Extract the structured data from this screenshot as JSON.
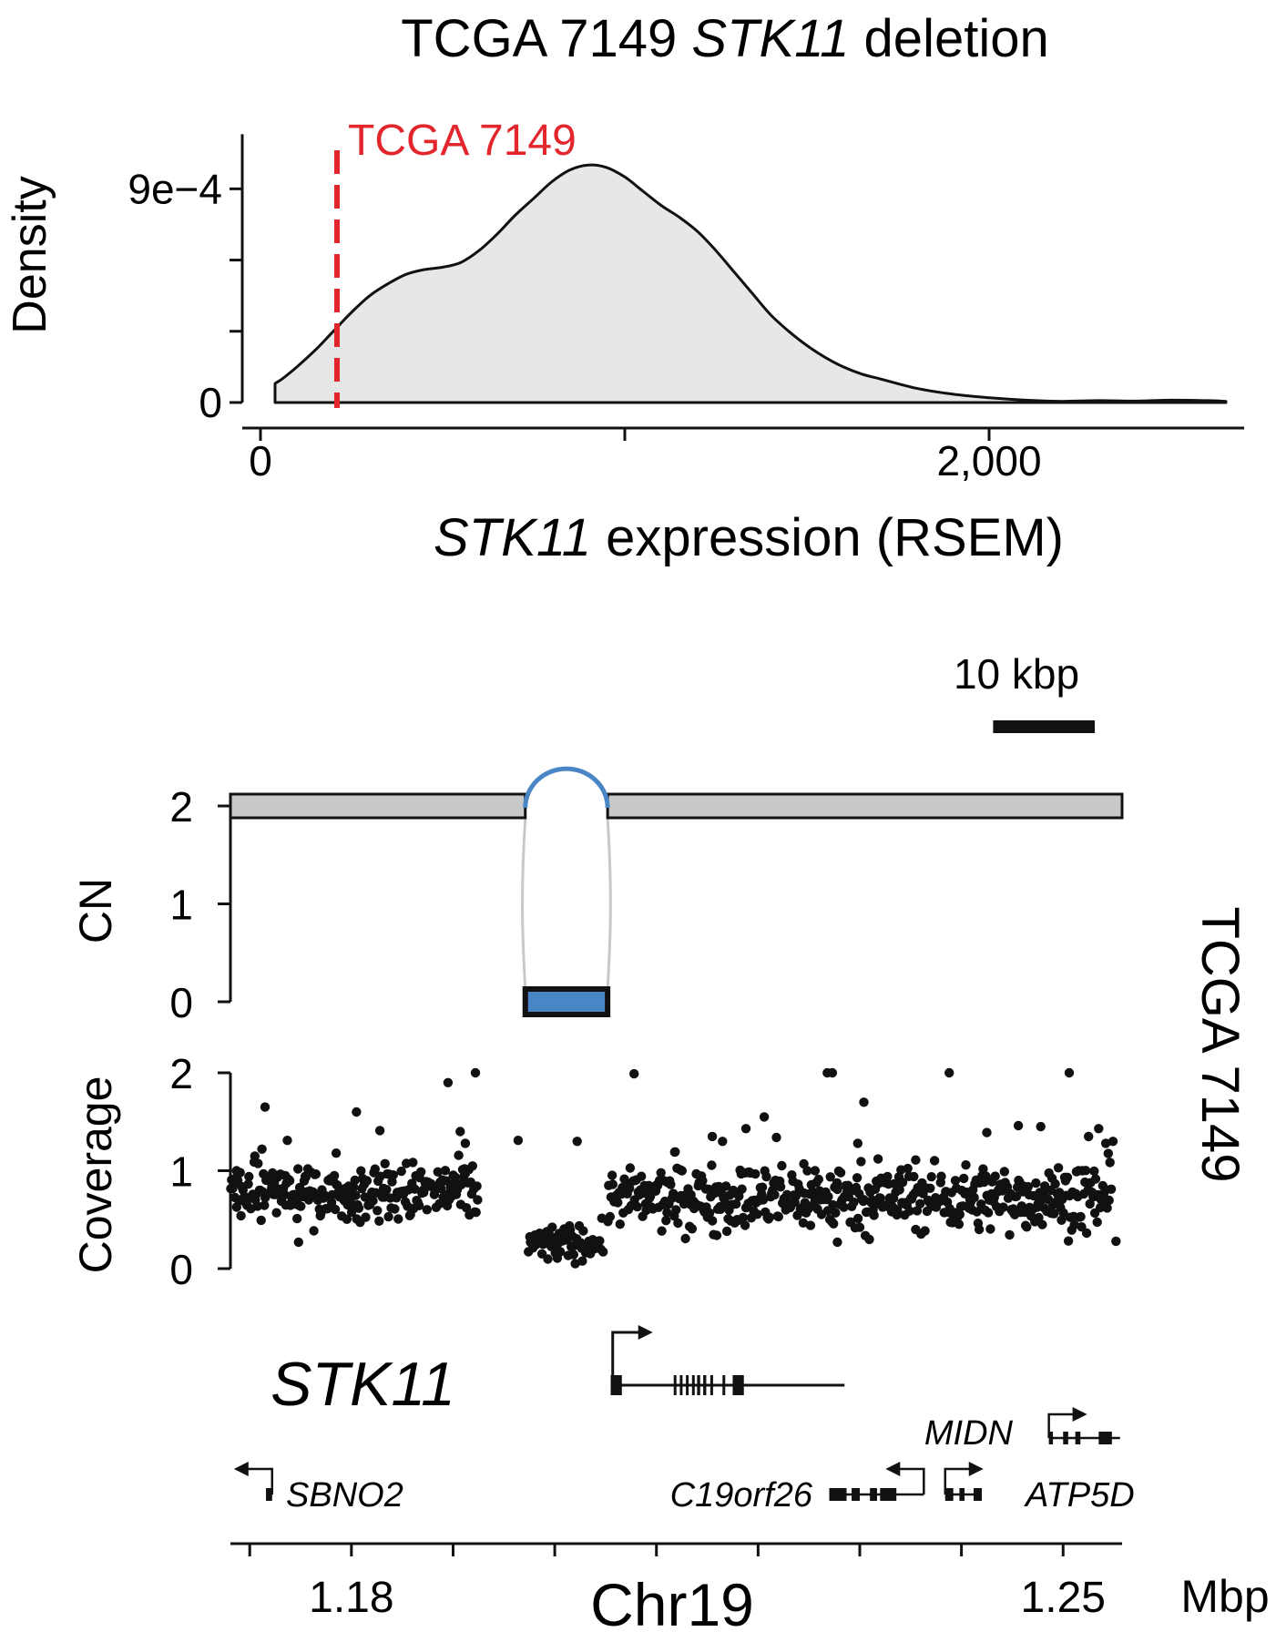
{
  "title": {
    "prefix": "TCGA 7149 ",
    "gene": "STK11",
    "suffix": " deletion"
  },
  "chart_data": [
    {
      "type": "area",
      "description": "Density of STK11 expression across samples",
      "xlabel_gene": "STK11",
      "xlabel_rest": " expression (RSEM)",
      "ylabel": "Density",
      "xlim": [
        -50,
        2700
      ],
      "ylim": [
        -5e-05,
        0.00112
      ],
      "x_ticks": [
        0,
        2000
      ],
      "x_tick_labels": [
        "0",
        "2,000"
      ],
      "x_minor_ticks": [
        0,
        1000,
        2000
      ],
      "y_ticks": [
        0,
        0.0009
      ],
      "y_tick_labels": [
        "0",
        "9e−4"
      ],
      "y_minor_ticks": [
        0,
        0.0003,
        0.0006,
        0.0009
      ],
      "fill_color": "#e6e8e7",
      "marker": {
        "x": 210,
        "label": "TCGA 7149",
        "color": "#e2262c"
      },
      "x": [
        40,
        60,
        100,
        150,
        200,
        250,
        300,
        350,
        400,
        450,
        500,
        550,
        600,
        650,
        700,
        750,
        800,
        850,
        900,
        950,
        1000,
        1050,
        1100,
        1150,
        1200,
        1250,
        1300,
        1350,
        1400,
        1450,
        1500,
        1550,
        1600,
        1650,
        1700,
        1800,
        1900,
        2000,
        2100,
        2200,
        2300,
        2400,
        2500,
        2600,
        2650
      ],
      "density": [
        8e-05,
        0.0001,
        0.00015,
        0.00022,
        0.0003,
        0.00038,
        0.00045,
        0.0005,
        0.00054,
        0.00056,
        0.00057,
        0.00059,
        0.00064,
        0.00071,
        0.00079,
        0.00086,
        0.00093,
        0.00098,
        0.001,
        0.00099,
        0.00095,
        0.00089,
        0.00083,
        0.00078,
        0.00072,
        0.00064,
        0.00055,
        0.00046,
        0.00037,
        0.0003,
        0.00024,
        0.00019,
        0.00015,
        0.00012,
        0.0001,
        6e-05,
        3.5e-05,
        2e-05,
        1e-05,
        5e-06,
        8e-06,
        6e-06,
        1e-05,
        8e-06,
        5e-06
      ]
    },
    {
      "type": "genome_track",
      "side_label": "TCGA 7149",
      "xlabel": "Chr19",
      "x_unit": "Mbp",
      "xlim": [
        1.1681,
        1.2558
      ],
      "x_ticks": [
        1.18,
        1.25
      ],
      "x_tick_labels": [
        "1.18",
        "1.25"
      ],
      "x_minor_ticks": [
        1.17,
        1.18,
        1.19,
        1.2,
        1.21,
        1.22,
        1.23,
        1.24,
        1.25
      ],
      "scale_bar_label": "10 kbp",
      "scale_bar_kbp": 10,
      "cn": {
        "ylabel": "CN",
        "ylim": [
          0,
          2
        ],
        "y_ticks": [
          0,
          1,
          2
        ],
        "y_tick_labels": [
          "0",
          "1",
          "2"
        ],
        "segments": [
          {
            "start": 1.1681,
            "end": 1.1971,
            "cn": 2,
            "color": "#c8c8c8"
          },
          {
            "start": 1.1971,
            "end": 1.2052,
            "cn": 0,
            "color": "#4a85c6"
          },
          {
            "start": 1.2052,
            "end": 1.2558,
            "cn": 2,
            "color": "#c8c8c8"
          }
        ],
        "deletion_arc_color": "#4a85c6",
        "link_color": "#c8c8c8"
      },
      "coverage": {
        "ylabel": "Coverage",
        "ylim": [
          0,
          2
        ],
        "y_ticks": [
          0,
          1,
          2
        ],
        "y_tick_labels": [
          "0",
          "1",
          "2"
        ],
        "regions": [
          {
            "start": 1.1681,
            "end": 1.1925,
            "mean": 0.78,
            "sd": 0.22
          },
          {
            "start": 1.1974,
            "end": 1.2048,
            "mean": 0.26,
            "sd": 0.13
          },
          {
            "start": 1.2052,
            "end": 1.2102,
            "mean": 0.72,
            "sd": 0.2
          },
          {
            "start": 1.2102,
            "end": 1.2548,
            "mean": 0.72,
            "sd": 0.24
          }
        ],
        "outliers": [
          [
            1.1687,
            1.0
          ],
          [
            1.1705,
            1.15
          ],
          [
            1.1712,
            1.22
          ],
          [
            1.1715,
            1.65
          ],
          [
            1.1735,
            0.95
          ],
          [
            1.1737,
            1.31
          ],
          [
            1.1748,
            0.27
          ],
          [
            1.1785,
            1.18
          ],
          [
            1.1805,
            1.6
          ],
          [
            1.1828,
            1.41
          ],
          [
            1.1895,
            1.9
          ],
          [
            1.1907,
            1.4
          ],
          [
            1.1912,
            1.28
          ],
          [
            1.1922,
            2.0
          ],
          [
            1.1964,
            1.31
          ],
          [
            1.2022,
            1.3
          ],
          [
            1.2078,
            1.99
          ],
          [
            1.2118,
            1.19
          ],
          [
            1.2155,
            1.35
          ],
          [
            1.2165,
            1.3
          ],
          [
            1.2188,
            1.43
          ],
          [
            1.2206,
            1.55
          ],
          [
            1.2218,
            1.34
          ],
          [
            1.2245,
            1.07
          ],
          [
            1.2256,
            1.0
          ],
          [
            1.2268,
            2.0
          ],
          [
            1.2273,
            2.0
          ],
          [
            1.2278,
            0.27
          ],
          [
            1.2298,
            1.28
          ],
          [
            1.2304,
            1.7
          ],
          [
            1.2318,
            1.12
          ],
          [
            1.2355,
            1.11
          ],
          [
            1.2388,
            2.0
          ],
          [
            1.2425,
            1.39
          ],
          [
            1.2456,
            1.46
          ],
          [
            1.2478,
            1.45
          ],
          [
            1.2488,
            0.8
          ],
          [
            1.2506,
            2.0
          ],
          [
            1.2525,
            1.35
          ],
          [
            1.2535,
            1.43
          ],
          [
            1.2542,
            1.28
          ],
          [
            1.2549,
            1.3
          ],
          [
            1.2552,
            0.28
          ]
        ]
      },
      "genes": [
        {
          "name": "STK11",
          "strand": "+",
          "start": 1.2057,
          "end": 1.2285,
          "tss": 1.2057,
          "exons": [
            [
              1.2055,
              1.2066
            ],
            [
              1.2117,
              1.2119
            ],
            [
              1.2123,
              1.2125
            ],
            [
              1.2129,
              1.2131
            ],
            [
              1.2135,
              1.2137
            ],
            [
              1.214,
              1.2143
            ],
            [
              1.2146,
              1.2149
            ],
            [
              1.2153,
              1.2155
            ],
            [
              1.2165,
              1.2167
            ],
            [
              1.2175,
              1.2186
            ]
          ]
        },
        {
          "name": "MIDN",
          "strand": "+",
          "start": 1.2486,
          "end": 1.2556,
          "tss": 1.2486,
          "exons": [
            [
              1.2486,
              1.249
            ],
            [
              1.25,
              1.2505
            ],
            [
              1.2512,
              1.2517
            ],
            [
              1.2535,
              1.2548
            ]
          ]
        },
        {
          "name": "SBNO2",
          "strand": "-",
          "start": 1.1718,
          "end": 1.1722,
          "tss": 1.1722,
          "exons": [
            [
              1.1716,
              1.1722
            ]
          ]
        },
        {
          "name": "C19orf26",
          "strand": "-",
          "start": 1.227,
          "end": 1.2363,
          "tss": 1.2363,
          "exons": [
            [
              1.227,
              1.2287
            ],
            [
              1.2292,
              1.23
            ],
            [
              1.231,
              1.2317
            ],
            [
              1.232,
              1.2336
            ]
          ]
        },
        {
          "name": "ATP5D",
          "strand": "+",
          "start": 1.2384,
          "end": 1.242,
          "tss": 1.2384,
          "exons": [
            [
              1.2384,
              1.2392
            ],
            [
              1.2398,
              1.2403
            ],
            [
              1.2412,
              1.242
            ]
          ]
        }
      ]
    }
  ]
}
